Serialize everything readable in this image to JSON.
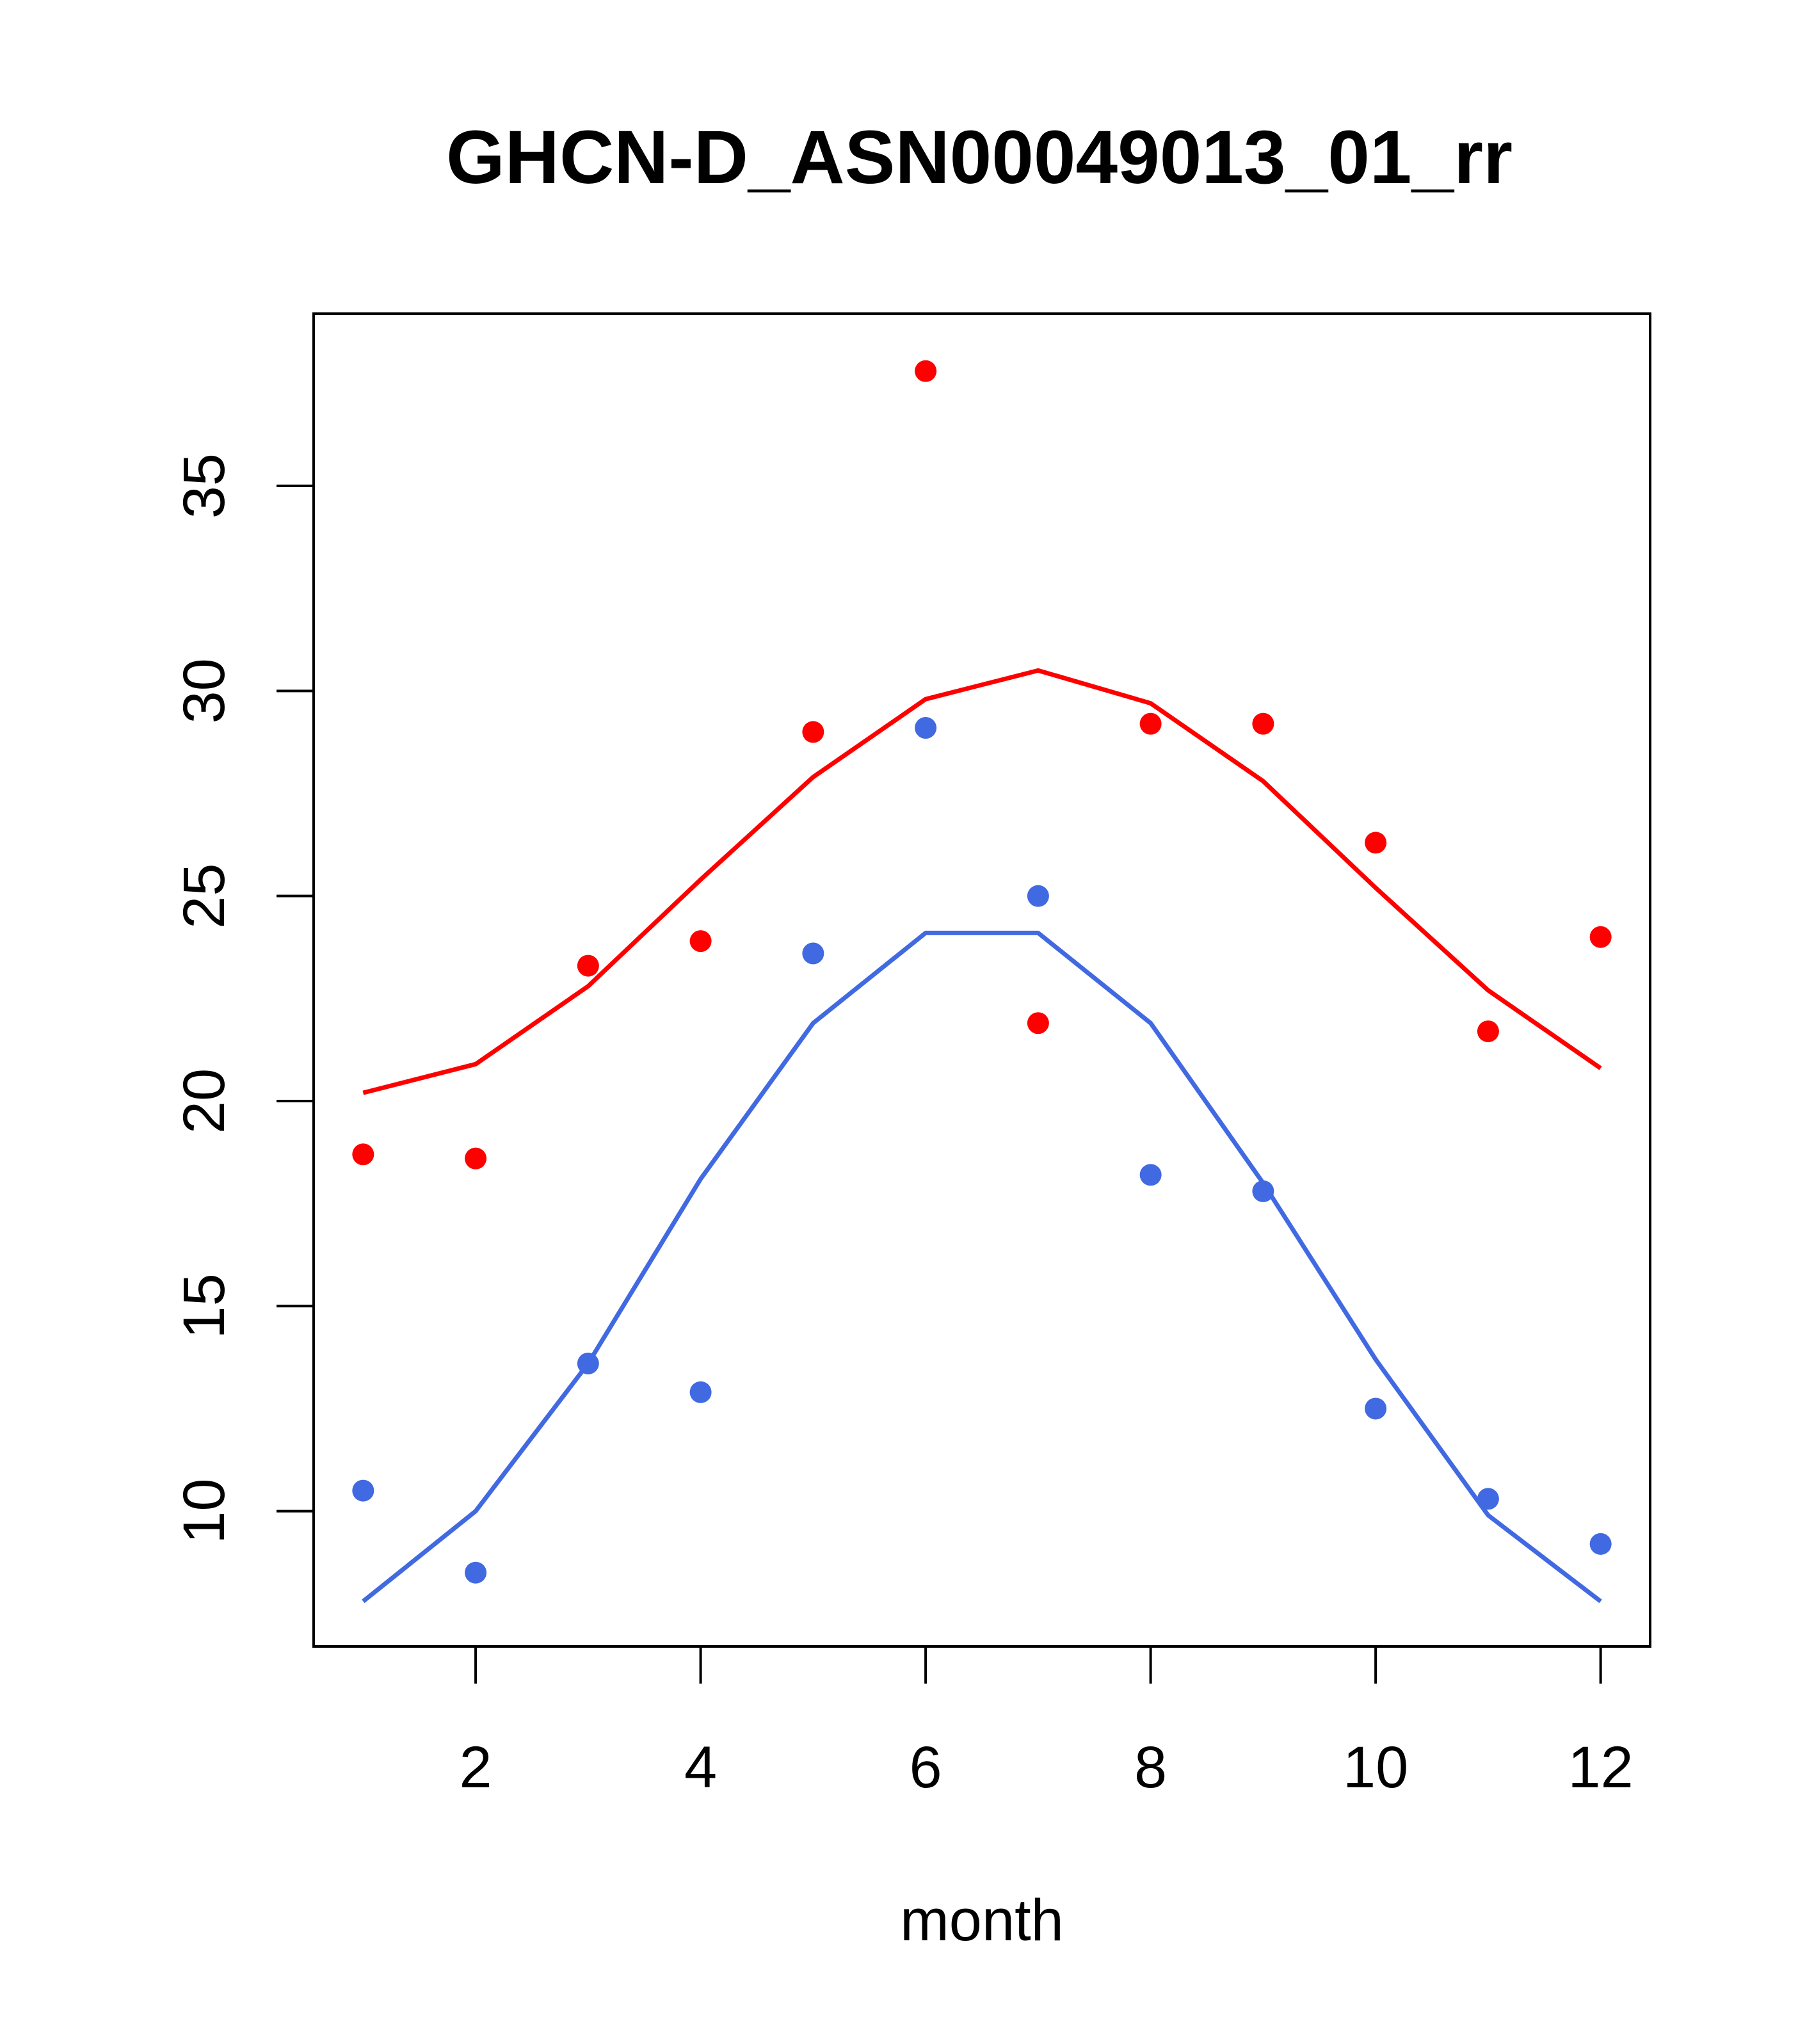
{
  "chart_data": {
    "type": "scatter",
    "title": "GHCN-D_ASN00049013_01_rr",
    "xlabel": "month",
    "ylabel": "",
    "xlim": [
      0.56,
      12.44
    ],
    "ylim": [
      6.7,
      39.2
    ],
    "x_ticks": [
      2,
      4,
      6,
      8,
      10,
      12
    ],
    "y_ticks": [
      10,
      15,
      20,
      25,
      30,
      35
    ],
    "x_tick_labels": [
      "2",
      "4",
      "6",
      "8",
      "10",
      "12"
    ],
    "y_tick_labels": [
      "10",
      "15",
      "20",
      "25",
      "30",
      "35"
    ],
    "grid": false,
    "series": [
      {
        "color": "#ff0000",
        "points_x": [
          1,
          2,
          3,
          4,
          5,
          6,
          7,
          8,
          9,
          10,
          11,
          12
        ],
        "points_y": [
          18.7,
          18.6,
          23.3,
          23.9,
          29.0,
          37.8,
          21.9,
          29.2,
          29.2,
          26.3,
          21.7,
          24.0
        ],
        "line_x": [
          1,
          2,
          3,
          4,
          5,
          6,
          7,
          8,
          9,
          10,
          11,
          12
        ],
        "line_y": [
          20.2,
          20.9,
          22.8,
          25.4,
          27.9,
          29.8,
          30.5,
          29.7,
          27.8,
          25.2,
          22.7,
          20.8
        ]
      },
      {
        "color": "#4169e1",
        "points_x": [
          1,
          2,
          3,
          4,
          5,
          6,
          7,
          8,
          9,
          10,
          11,
          12
        ],
        "points_y": [
          10.5,
          8.5,
          13.6,
          12.9,
          23.6,
          29.1,
          25.0,
          18.2,
          17.8,
          12.5,
          10.3,
          9.2
        ],
        "line_x": [
          1,
          2,
          3,
          4,
          5,
          6,
          7,
          8,
          9,
          10,
          11,
          12
        ],
        "line_y": [
          7.8,
          10.0,
          13.6,
          18.1,
          21.9,
          24.1,
          24.1,
          21.9,
          18.0,
          13.7,
          9.9,
          7.8
        ]
      }
    ]
  }
}
